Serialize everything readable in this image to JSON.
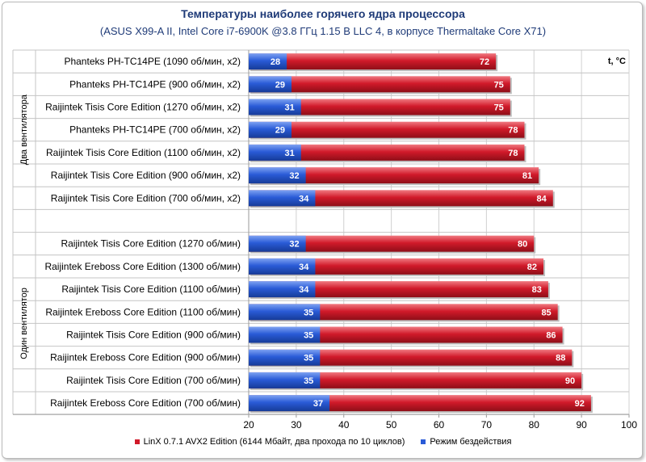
{
  "chart_data": {
    "type": "bar",
    "orientation": "horizontal",
    "stacking": "overlay",
    "title": "Температуры наиболее горячего ядра процессора",
    "subtitle": "(ASUS X99-A II, Intel Core i7-6900K @3.8 ГГц 1.15 В LLC 4, в корпусе Thermaltake Core X71)",
    "unit_label": "t, °C",
    "xlim": [
      20,
      100
    ],
    "xticks": [
      20,
      30,
      40,
      50,
      60,
      70,
      80,
      90,
      100
    ],
    "grid": true,
    "legend_position": "bottom",
    "groups": [
      {
        "label": "Два вентилятора",
        "categories": [
          "Phanteks PH-TC14PE (1090 об/мин, x2)",
          "Phanteks PH-TC14PE (900 об/мин, x2)",
          "Raijintek Tisis Core Edition (1270 об/мин, x2)",
          "Phanteks PH-TC14PE (700 об/мин, x2)",
          "Raijintek Tisis Core Edition (1100 об/мин, x2)",
          "Raijintek Tisis Core Edition (900 об/мин, x2)",
          "Raijintek Tisis Core Edition (700 об/мин, x2)"
        ],
        "linx": [
          72,
          75,
          75,
          78,
          78,
          81,
          84
        ],
        "idle": [
          28,
          29,
          31,
          29,
          31,
          32,
          34
        ]
      },
      {
        "label": "Один вентилятор",
        "categories": [
          "Raijintek Tisis Core Edition (1270 об/мин)",
          "Raijintek Ereboss Core Edition (1300 об/мин)",
          "Raijintek Tisis Core Edition (1100 об/мин)",
          "Raijintek Ereboss Core Edition (1100 об/мин)",
          "Raijintek Tisis Core Edition (900 об/мин)",
          "Raijintek Ereboss Core Edition (900 об/мин)",
          "Raijintek Tisis Core Edition (700 об/мин)",
          "Raijintek Ereboss Core Edition (700 об/мин)"
        ],
        "linx": [
          80,
          82,
          83,
          85,
          86,
          88,
          90,
          92
        ],
        "idle": [
          32,
          34,
          34,
          35,
          35,
          35,
          35,
          37
        ]
      }
    ],
    "series": [
      {
        "key": "linx",
        "name": "LinX 0.7.1 AVX2 Edition (6144 Мбайт, два прохода по 10 циклов)",
        "color": "#d11a2a"
      },
      {
        "key": "idle",
        "name": "Режим бездействия",
        "color": "#2a5bd7"
      }
    ]
  }
}
